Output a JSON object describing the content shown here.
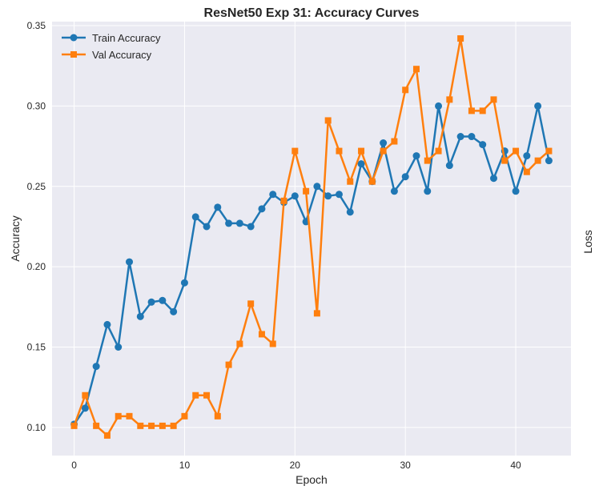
{
  "chart_data": {
    "type": "line",
    "title": "ResNet50 Exp 31: Accuracy Curves",
    "xlabel": "Epoch",
    "ylabel": "Accuracy",
    "ylabel_right": "Loss",
    "xlim": [
      -2,
      45
    ],
    "ylim": [
      0.0825,
      0.3525
    ],
    "xticks": [
      0,
      10,
      20,
      30,
      40
    ],
    "yticks": [
      0.1,
      0.15,
      0.2,
      0.25,
      0.3,
      0.35
    ],
    "ytick_labels": [
      "0.10",
      "0.15",
      "0.20",
      "0.25",
      "0.30",
      "0.35"
    ],
    "grid": true,
    "legend_position": "top-left",
    "x": [
      0,
      1,
      2,
      3,
      4,
      5,
      6,
      7,
      8,
      9,
      10,
      11,
      12,
      13,
      14,
      15,
      16,
      17,
      18,
      19,
      20,
      21,
      22,
      23,
      24,
      25,
      26,
      27,
      28,
      29,
      30,
      31,
      32,
      33,
      34,
      35,
      36,
      37,
      38,
      39,
      40,
      41,
      42,
      43
    ],
    "series": [
      {
        "name": "Train Accuracy",
        "color": "#1f77b4",
        "marker": "circle",
        "values": [
          0.102,
          0.112,
          0.138,
          0.164,
          0.15,
          0.203,
          0.169,
          0.178,
          0.179,
          0.172,
          0.19,
          0.231,
          0.225,
          0.237,
          0.227,
          0.227,
          0.225,
          0.236,
          0.245,
          0.24,
          0.244,
          0.228,
          0.25,
          0.244,
          0.245,
          0.234,
          0.264,
          0.253,
          0.277,
          0.247,
          0.256,
          0.269,
          0.247,
          0.3,
          0.263,
          0.281,
          0.281,
          0.276,
          0.255,
          0.272,
          0.247,
          0.269,
          0.3,
          0.266
        ]
      },
      {
        "name": "Val Accuracy",
        "color": "#ff7f0e",
        "marker": "square",
        "values": [
          0.101,
          0.12,
          0.101,
          0.095,
          0.107,
          0.107,
          0.101,
          0.101,
          0.101,
          0.101,
          0.107,
          0.12,
          0.12,
          0.107,
          0.139,
          0.152,
          0.177,
          0.158,
          0.152,
          0.241,
          0.272,
          0.247,
          0.171,
          0.291,
          0.272,
          0.253,
          0.272,
          0.253,
          0.272,
          0.278,
          0.31,
          0.323,
          0.266,
          0.272,
          0.304,
          0.342,
          0.297,
          0.297,
          0.304,
          0.266,
          0.272,
          0.259,
          0.266,
          0.272
        ]
      }
    ]
  }
}
